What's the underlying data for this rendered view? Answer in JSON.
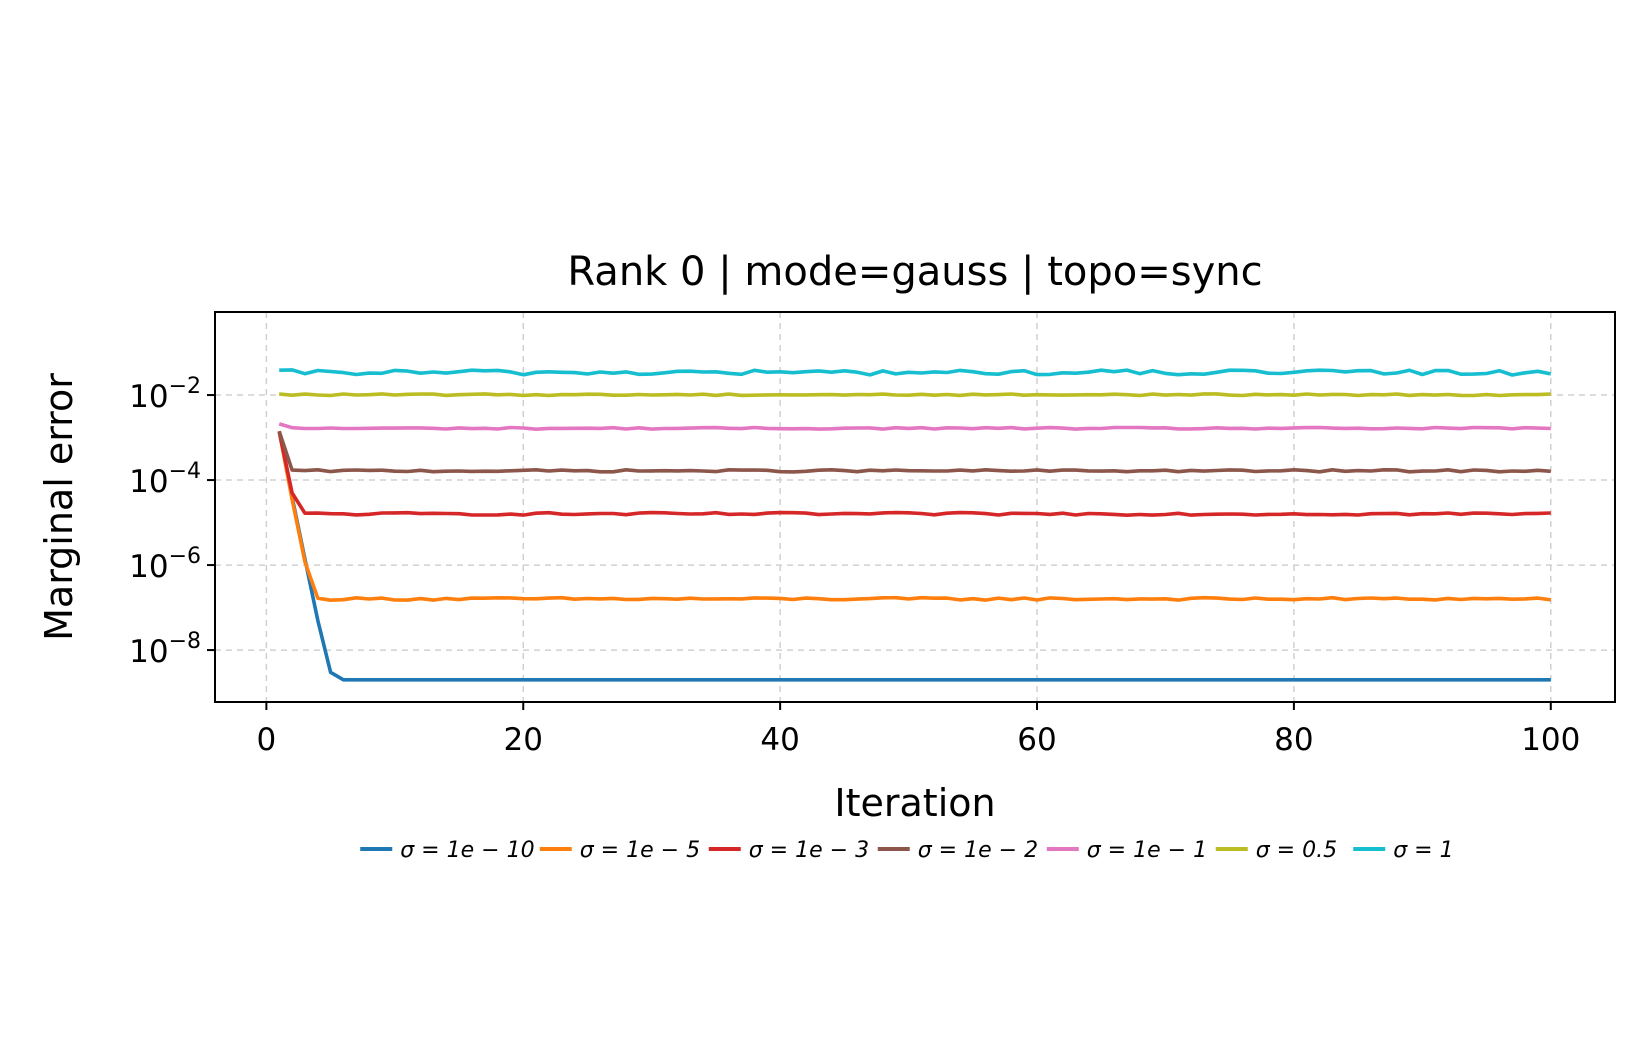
{
  "chart_data": {
    "type": "line",
    "title": "Rank 0 | mode=gauss | topo=sync",
    "xlabel": "Iteration",
    "ylabel": "Marginal error",
    "xscale": "linear",
    "yscale": "log",
    "xlim": [
      -4,
      105
    ],
    "ylim": [
      6e-10,
      0.9
    ],
    "xticks": [
      0,
      20,
      40,
      60,
      80,
      100
    ],
    "xtick_labels": [
      "0",
      "20",
      "40",
      "60",
      "80",
      "100"
    ],
    "yticks": [
      {
        "value": 0.01,
        "base": "10",
        "exp": "−2"
      },
      {
        "value": 0.0001,
        "base": "10",
        "exp": "−4"
      },
      {
        "value": 1e-06,
        "base": "10",
        "exp": "−6"
      },
      {
        "value": 1e-08,
        "base": "10",
        "exp": "−8"
      }
    ],
    "grid": true,
    "legend_position": "bottom-center",
    "x_range": [
      1,
      100
    ],
    "series": [
      {
        "name": "σ = 1e − 10",
        "color": "#1f77b4",
        "start": 0.0014,
        "decay": [
          0.0014,
          4e-05,
          1.4e-06,
          5e-08,
          3e-09
        ],
        "plateau": 2e-09,
        "noise": 0.0
      },
      {
        "name": "σ = 1e − 5",
        "color": "#ff7f0e",
        "start": 0.0014,
        "decay": [
          0.0014,
          3.5e-05,
          1.2e-06
        ],
        "plateau": 1.6e-07,
        "noise": 0.03
      },
      {
        "name": "σ = 1e − 3",
        "color": "#d62728",
        "start": 0.0014,
        "decay": [
          0.0014,
          5e-05
        ],
        "plateau": 1.6e-05,
        "noise": 0.03
      },
      {
        "name": "σ = 1e − 2",
        "color": "#8c564b",
        "start": 0.0014,
        "decay": [
          0.0014
        ],
        "plateau": 0.000165,
        "noise": 0.025
      },
      {
        "name": "σ = 1e − 1",
        "color": "#e377c2",
        "start": 0.0021,
        "decay": [
          0.0021
        ],
        "plateau": 0.00165,
        "noise": 0.02
      },
      {
        "name": "σ = 0.5",
        "color": "#bcbd22",
        "start": 0.0102,
        "decay": [],
        "plateau": 0.0102,
        "noise": 0.02
      },
      {
        "name": "σ = 1",
        "color": "#17becf",
        "start": 0.034,
        "decay": [],
        "plateau": 0.034,
        "noise": 0.06
      }
    ]
  }
}
